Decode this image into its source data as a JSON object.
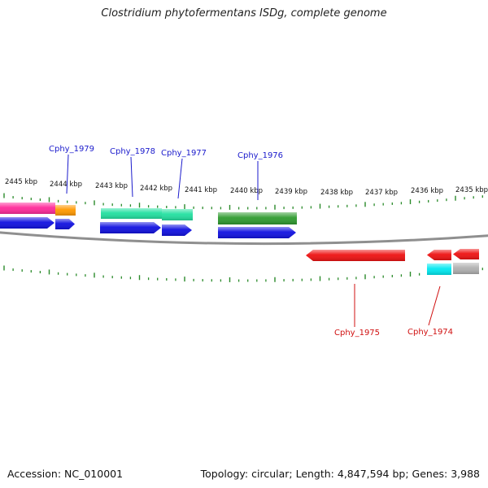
{
  "title": "Clostridium phytofermentans ISDg, complete genome",
  "footer": {
    "accession": "Accession: NC_010001",
    "summary": "Topology: circular; Length: 4,847,594 bp; Genes: 3,988"
  },
  "colors": {
    "backbone": "#8f8f8f",
    "tick": "#2a8a2a",
    "label_forward": "#1a1acc",
    "label_reverse": "#d01010",
    "cds_blue": "#1010e0",
    "pink": "#ff2a9a",
    "orange": "#ff9900",
    "teal": "#22e0a0",
    "dark_green": "#2e9a2e",
    "red": "#ee1111",
    "cyan": "#00e8f0",
    "grey": "#b0b0b0"
  },
  "scale_labels": [
    "2445 kbp",
    "2444 kbp",
    "2443 kbp",
    "2442 kbp",
    "2441 kbp",
    "2440 kbp",
    "2439 kbp",
    "2438 kbp",
    "2437 kbp",
    "2436 kbp",
    "2435 kbp"
  ],
  "gene_labels": [
    {
      "text": "Cphy_1979",
      "strand": "forward"
    },
    {
      "text": "Cphy_1978",
      "strand": "forward"
    },
    {
      "text": "Cphy_1977",
      "strand": "forward"
    },
    {
      "text": "Cphy_1976",
      "strand": "forward"
    },
    {
      "text": "Cphy_1975",
      "strand": "reverse"
    },
    {
      "text": "Cphy_1974",
      "strand": "reverse"
    }
  ],
  "features": [
    {
      "track": "cog-forward",
      "color": "pink"
    },
    {
      "track": "cog-forward",
      "color": "orange"
    },
    {
      "track": "cog-forward",
      "color": "teal"
    },
    {
      "track": "cog-forward",
      "color": "teal"
    },
    {
      "track": "cog-forward",
      "color": "dark_green"
    },
    {
      "track": "cds-forward",
      "color": "cds_blue"
    },
    {
      "track": "cds-forward",
      "color": "cds_blue"
    },
    {
      "track": "cds-forward",
      "color": "cds_blue"
    },
    {
      "track": "cds-forward",
      "color": "cds_blue"
    },
    {
      "track": "cds-forward",
      "color": "cds_blue"
    },
    {
      "track": "cds-reverse",
      "color": "red"
    },
    {
      "track": "cds-reverse",
      "color": "red"
    },
    {
      "track": "cds-reverse",
      "color": "red"
    },
    {
      "track": "cog-reverse",
      "color": "cyan"
    },
    {
      "track": "cog-reverse",
      "color": "grey"
    }
  ]
}
